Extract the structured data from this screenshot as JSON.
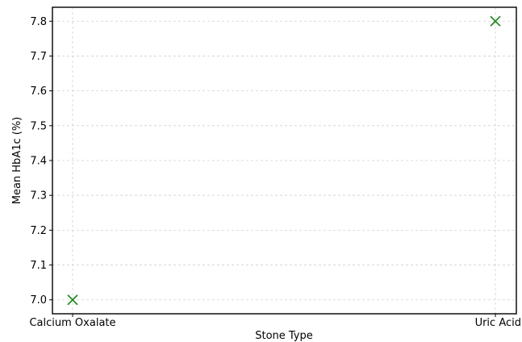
{
  "chart_data": {
    "type": "scatter",
    "title": "",
    "xlabel": "Stone Type",
    "ylabel": "Mean HbA1c (%)",
    "categories": [
      "Calcium Oxalate",
      "Uric Acid"
    ],
    "series": [
      {
        "values": [
          7.0,
          7.8
        ],
        "color": "#2a8a2a",
        "marker": "x"
      }
    ],
    "ylim": [
      6.96,
      7.84
    ],
    "yticks": [
      "7.0",
      "7.1",
      "7.2",
      "7.3",
      "7.4",
      "7.5",
      "7.6",
      "7.7",
      "7.8"
    ],
    "grid": true
  }
}
